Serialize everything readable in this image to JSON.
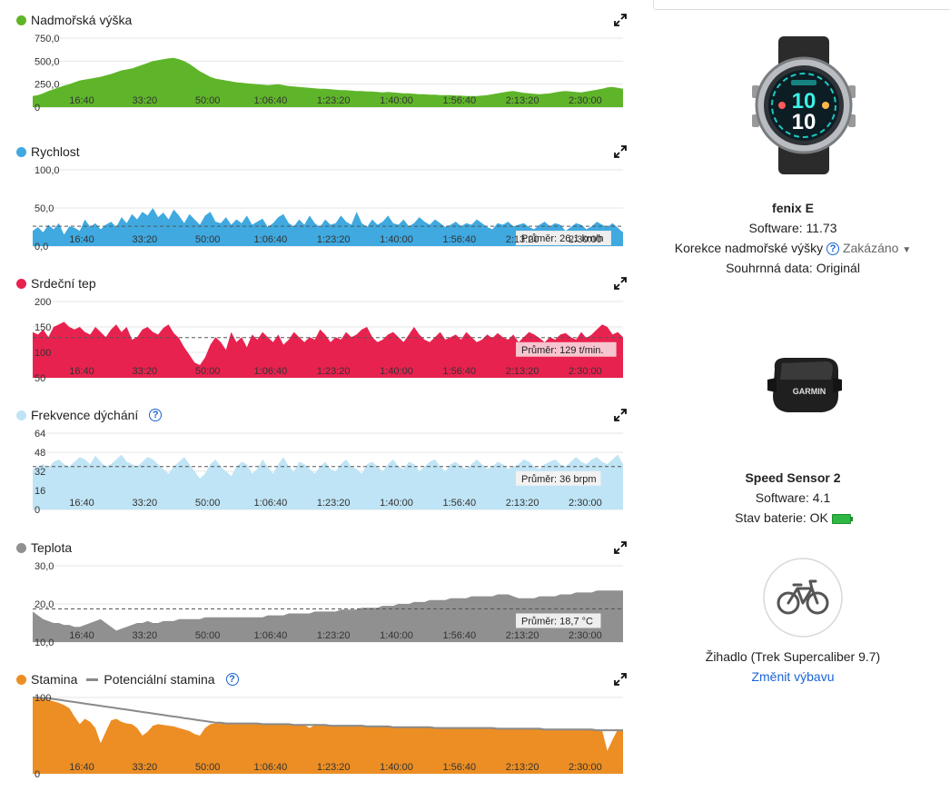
{
  "charts": [
    {
      "id": "elev",
      "title": "Nadmořská výška",
      "color": "#5fb52a",
      "yticks": [
        "750,0",
        "500,0",
        "250,0",
        "0"
      ],
      "ymax": 750,
      "values": [
        120,
        130,
        150,
        175,
        195,
        215,
        235,
        250,
        270,
        290,
        300,
        310,
        320,
        330,
        345,
        360,
        380,
        400,
        410,
        420,
        440,
        460,
        480,
        500,
        510,
        520,
        530,
        535,
        520,
        500,
        470,
        430,
        390,
        360,
        330,
        310,
        300,
        290,
        280,
        270,
        265,
        260,
        255,
        250,
        245,
        240,
        245,
        250,
        240,
        230,
        225,
        220,
        215,
        210,
        205,
        200,
        200,
        195,
        190,
        185,
        185,
        180,
        175,
        175,
        170,
        170,
        165,
        160,
        165,
        160,
        155,
        150,
        150,
        145,
        140,
        140,
        135,
        135,
        130,
        130,
        130,
        125,
        125,
        120,
        120,
        120,
        125,
        130,
        140,
        150,
        160,
        170,
        175,
        165,
        155,
        150,
        145,
        140,
        145,
        150,
        160,
        170,
        175,
        170,
        165,
        160,
        170,
        180,
        190,
        200,
        215,
        220,
        210,
        200
      ],
      "avg": null,
      "avg_label": ""
    },
    {
      "id": "speed",
      "title": "Rychlost",
      "color": "#3fa9e0",
      "yticks": [
        "100,0",
        "50,0",
        "0,0"
      ],
      "ymax": 100,
      "values": [
        20,
        25,
        18,
        28,
        22,
        30,
        15,
        26,
        24,
        20,
        35,
        25,
        30,
        22,
        28,
        32,
        25,
        38,
        30,
        42,
        35,
        45,
        40,
        50,
        38,
        44,
        35,
        48,
        40,
        30,
        42,
        35,
        28,
        40,
        45,
        32,
        30,
        38,
        28,
        35,
        30,
        40,
        28,
        32,
        36,
        25,
        30,
        38,
        42,
        30,
        26,
        35,
        28,
        40,
        30,
        25,
        35,
        28,
        30,
        40,
        32,
        28,
        45,
        30,
        25,
        35,
        28,
        32,
        40,
        30,
        28,
        35,
        26,
        30,
        38,
        32,
        28,
        35,
        30,
        25,
        28,
        32,
        26,
        30,
        28,
        35,
        30,
        25,
        22,
        30,
        28,
        32,
        26,
        28,
        30,
        25,
        22,
        28,
        32,
        26,
        30,
        28,
        20,
        25,
        30,
        28,
        22,
        26,
        32,
        28,
        25,
        30,
        24,
        18
      ],
      "avg": 26.1,
      "avg_label": "Průměr: 26,1 km/h",
      "avg_bg": "#eeeeee"
    },
    {
      "id": "hr",
      "title": "Srdeční tep",
      "color": "#e8224f",
      "yticks": [
        "200",
        "150",
        "100",
        "50"
      ],
      "ymin": 50,
      "ymax": 200,
      "values": [
        140,
        135,
        145,
        130,
        150,
        155,
        160,
        150,
        145,
        150,
        140,
        135,
        150,
        140,
        130,
        145,
        155,
        140,
        150,
        125,
        130,
        145,
        150,
        140,
        135,
        148,
        155,
        138,
        128,
        110,
        95,
        80,
        75,
        90,
        115,
        130,
        120,
        105,
        140,
        120,
        130,
        110,
        135,
        125,
        140,
        130,
        120,
        135,
        115,
        125,
        140,
        130,
        120,
        130,
        125,
        145,
        135,
        120,
        130,
        125,
        140,
        130,
        135,
        145,
        150,
        130,
        120,
        125,
        135,
        140,
        130,
        120,
        135,
        150,
        135,
        125,
        120,
        130,
        140,
        125,
        130,
        135,
        125,
        140,
        130,
        120,
        125,
        135,
        128,
        138,
        130,
        125,
        135,
        120,
        130,
        140,
        135,
        128,
        120,
        130,
        125,
        135,
        138,
        130,
        125,
        140,
        128,
        135,
        145,
        155,
        150,
        135,
        140,
        130
      ],
      "avg": 129,
      "avg_label": "Průměr: 129 t/min.",
      "avg_bg": "#f7c5cf"
    },
    {
      "id": "resp",
      "title": "Frekvence dýchání",
      "help": true,
      "color": "#bfe4f5",
      "yticks": [
        "64",
        "48",
        "32",
        "16",
        "0"
      ],
      "ymax": 64,
      "values": [
        34,
        36,
        38,
        35,
        40,
        42,
        38,
        36,
        40,
        44,
        42,
        38,
        45,
        40,
        36,
        38,
        42,
        46,
        40,
        38,
        36,
        40,
        44,
        42,
        38,
        34,
        30,
        36,
        40,
        44,
        38,
        32,
        26,
        30,
        38,
        42,
        36,
        32,
        28,
        36,
        40,
        38,
        30,
        34,
        42,
        36,
        30,
        38,
        44,
        36,
        32,
        40,
        38,
        34,
        30,
        36,
        40,
        34,
        32,
        38,
        42,
        36,
        34,
        30,
        38,
        40,
        36,
        32,
        38,
        42,
        36,
        34,
        40,
        38,
        32,
        36,
        40,
        42,
        36,
        32,
        38,
        40,
        36,
        34,
        38,
        42,
        38,
        34,
        36,
        40,
        38,
        34,
        36,
        38,
        42,
        40,
        36,
        34,
        38,
        40,
        42,
        38,
        36,
        40,
        44,
        40,
        38,
        42,
        44,
        40,
        38,
        42,
        46,
        38
      ],
      "avg": 36,
      "avg_label": "Průměr: 36 brpm",
      "avg_bg": "#f2f2f2"
    },
    {
      "id": "temp",
      "title": "Teplota",
      "color": "#909090",
      "yticks": [
        "30,0",
        "20,0",
        "10,0"
      ],
      "ymin": 10,
      "ymax": 30,
      "values": [
        18,
        17,
        16,
        15.5,
        15,
        15,
        14.5,
        14.5,
        14,
        14,
        14.5,
        15,
        15.5,
        16,
        15,
        14,
        13,
        13.5,
        14,
        14.5,
        15,
        15,
        15.5,
        15,
        15,
        15.5,
        15.5,
        15.5,
        16,
        16,
        16,
        16,
        16,
        16.5,
        16.5,
        16.5,
        16.5,
        16.5,
        16.5,
        16.5,
        16.5,
        16.5,
        16.5,
        16.5,
        16.5,
        17,
        17,
        17,
        17,
        17.5,
        17.5,
        17.5,
        17.5,
        17.5,
        18,
        18,
        18,
        18,
        18,
        18.5,
        18.5,
        18.5,
        18.5,
        19,
        19,
        19,
        19,
        19.5,
        19.5,
        19.5,
        20,
        20,
        20,
        20.5,
        20.5,
        20.5,
        21,
        21,
        21,
        21,
        21.5,
        21.5,
        21.5,
        21.5,
        22,
        22,
        22,
        22,
        22,
        22.5,
        22.5,
        22.5,
        22,
        21.5,
        21.5,
        21.5,
        21.5,
        22,
        22,
        22,
        22,
        22.5,
        22.5,
        22.5,
        23,
        23,
        23,
        23,
        23.5,
        23.5,
        23.5,
        23.5,
        23.5,
        23.5
      ],
      "avg": 18.7,
      "avg_label": "Průměr: 18,7 °C",
      "avg_bg": "#eeeeee"
    },
    {
      "id": "stamina",
      "title": "Stamina",
      "legend2": "Potenciální stamina",
      "help": true,
      "color": "#ec8e24",
      "yticks": [
        "100",
        "0"
      ],
      "ymax": 100,
      "values": [
        100,
        99,
        98,
        97,
        95,
        93,
        90,
        86,
        75,
        65,
        72,
        68,
        60,
        40,
        55,
        70,
        72,
        68,
        66,
        65,
        60,
        50,
        55,
        63,
        65,
        64,
        63,
        62,
        60,
        58,
        56,
        52,
        50,
        60,
        65,
        66,
        66,
        66,
        66,
        66,
        66,
        66,
        66,
        66,
        65,
        65,
        65,
        65,
        65,
        65,
        64,
        64,
        64,
        60,
        64,
        64,
        64,
        63,
        63,
        63,
        63,
        63,
        63,
        63,
        62,
        62,
        62,
        62,
        62,
        61,
        61,
        61,
        61,
        61,
        61,
        61,
        61,
        60,
        60,
        60,
        60,
        60,
        60,
        60,
        60,
        60,
        60,
        60,
        60,
        59,
        59,
        59,
        59,
        59,
        59,
        59,
        59,
        59,
        58,
        58,
        58,
        58,
        58,
        58,
        58,
        58,
        58,
        58,
        57,
        57,
        30,
        45,
        58,
        58
      ],
      "potential": [
        100,
        100,
        99,
        99,
        98,
        97,
        96,
        95,
        94,
        93,
        92,
        91,
        90,
        89,
        88,
        87,
        86,
        85,
        84,
        83,
        82,
        81,
        80,
        79,
        78,
        77,
        76,
        75,
        74,
        73,
        72,
        71,
        70,
        69,
        68,
        67,
        67,
        66,
        66,
        66,
        66,
        66,
        66,
        66,
        65,
        65,
        65,
        65,
        65,
        65,
        64,
        64,
        64,
        64,
        64,
        64,
        64,
        63,
        63,
        63,
        63,
        63,
        63,
        63,
        62,
        62,
        62,
        62,
        62,
        61,
        61,
        61,
        61,
        61,
        61,
        61,
        61,
        60,
        60,
        60,
        60,
        60,
        60,
        60,
        60,
        60,
        60,
        60,
        60,
        59,
        59,
        59,
        59,
        59,
        59,
        59,
        59,
        59,
        58,
        58,
        58,
        58,
        58,
        58,
        58,
        58,
        58,
        58,
        57,
        57,
        57,
        57,
        57,
        57
      ],
      "avg": null,
      "avg_label": ""
    }
  ],
  "xticks": [
    "16:40",
    "33:20",
    "50:00",
    "1:06:40",
    "1:23:20",
    "1:40:00",
    "1:56:40",
    "2:13:20",
    "2:30:00"
  ],
  "devices": {
    "watch": {
      "name": "fenix E",
      "software": "Software: 11.73",
      "elev_corr_label": "Korekce nadmořské výšky",
      "elev_corr_value": "Zakázáno",
      "summary": "Souhrnná data: Originál",
      "face_top": "10",
      "face_bottom": "10"
    },
    "sensor": {
      "name": "Speed Sensor 2",
      "software": "Software: 4.1",
      "battery": "Stav baterie: OK",
      "brand": "GARMIN"
    },
    "bike": {
      "name": "Žihadlo (Trek Supercaliber 9.7)",
      "change": "Změnit výbavu"
    }
  },
  "icons": {
    "expand": "expand-icon",
    "help": "help-icon",
    "bike": "bike-icon",
    "battery": "battery-icon"
  }
}
